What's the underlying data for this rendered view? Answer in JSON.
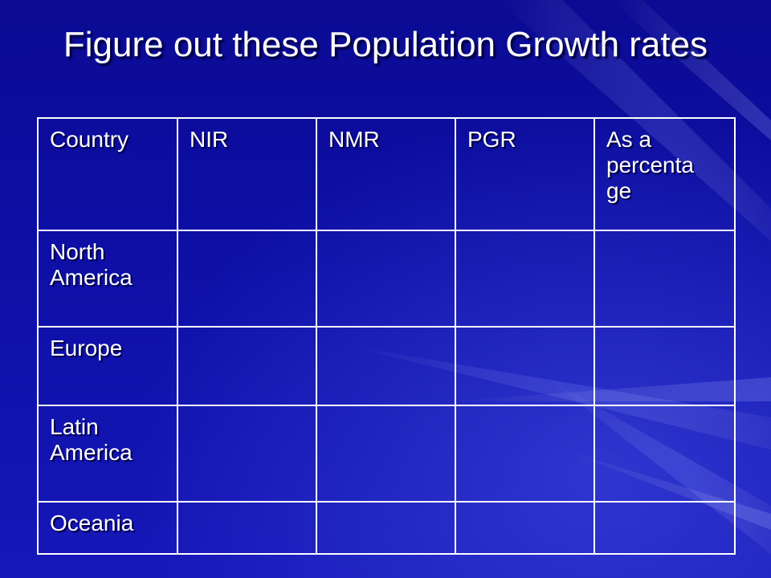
{
  "slide": {
    "title": "Figure out these Population Growth rates",
    "table": {
      "headers": [
        "Country",
        "NIR",
        "NMR",
        "PGR",
        "As a percenta ge"
      ],
      "rows": [
        {
          "country": "North America",
          "nir": "",
          "nmr": "",
          "pgr": "",
          "percentage": ""
        },
        {
          "country": "Europe",
          "nir": "",
          "nmr": "",
          "pgr": "",
          "percentage": ""
        },
        {
          "country": "Latin America",
          "nir": "",
          "nmr": "",
          "pgr": "",
          "percentage": ""
        },
        {
          "country": "Oceania",
          "nir": "",
          "nmr": "",
          "pgr": "",
          "percentage": ""
        }
      ]
    },
    "colors": {
      "background": "#0b0b94",
      "text": "#ffffff",
      "border": "#ffffff"
    }
  }
}
